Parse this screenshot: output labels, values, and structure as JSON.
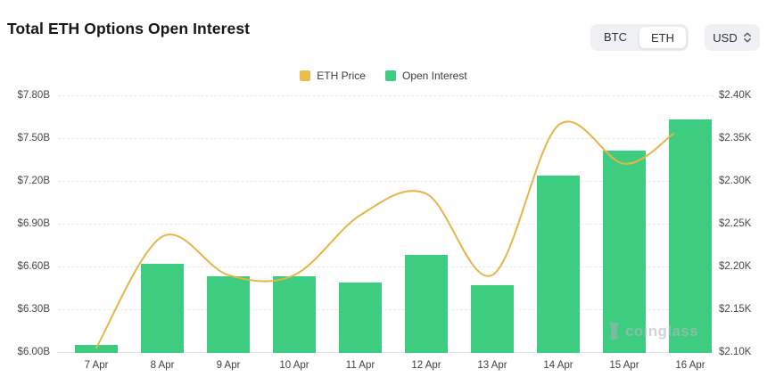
{
  "header": {
    "title": "Total ETH Options Open Interest",
    "coin_toggle": [
      "BTC",
      "ETH"
    ],
    "active_coin": "ETH",
    "currency": "USD"
  },
  "legend": [
    {
      "label": "ETH Price",
      "color": "#ecbc4e"
    },
    {
      "label": "Open Interest",
      "color": "#3ecc81"
    }
  ],
  "watermark": "coinglass",
  "chart_data": {
    "type": "bar",
    "title": "Total ETH Options Open Interest",
    "categories": [
      "7 Apr",
      "8 Apr",
      "9 Apr",
      "10 Apr",
      "11 Apr",
      "12 Apr",
      "13 Apr",
      "14 Apr",
      "15 Apr",
      "16 Apr"
    ],
    "series": [
      {
        "name": "Open Interest",
        "type": "bar",
        "axis": "left",
        "unit": "USD billions",
        "color": "#3ecc81",
        "values": [
          6.05,
          6.62,
          6.53,
          6.53,
          6.49,
          6.68,
          6.47,
          7.24,
          7.41,
          7.63
        ]
      },
      {
        "name": "ETH Price",
        "type": "line",
        "axis": "right",
        "unit": "USD thousands",
        "color": "#e8b44a",
        "values": [
          2.105,
          2.235,
          2.19,
          2.19,
          2.26,
          2.285,
          2.19,
          2.365,
          2.32,
          2.355
        ]
      }
    ],
    "left_axis": {
      "min": 6.0,
      "max": 7.8,
      "tick_step": 0.3,
      "ticks": [
        "$7.80B",
        "$7.50B",
        "$7.20B",
        "$6.90B",
        "$6.60B",
        "$6.30B",
        "$6.00B"
      ]
    },
    "right_axis": {
      "min": 2.1,
      "max": 2.4,
      "tick_step": 0.05,
      "ticks": [
        "$2.40K",
        "$2.35K",
        "$2.30K",
        "$2.25K",
        "$2.20K",
        "$2.15K",
        "$2.10K"
      ]
    },
    "grid": "horizontal dashed",
    "legend_position": "top center"
  }
}
